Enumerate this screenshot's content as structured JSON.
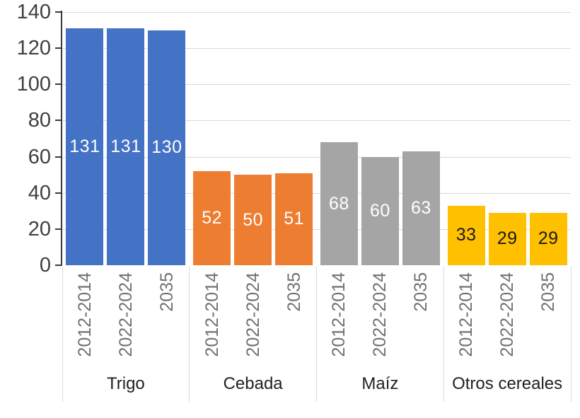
{
  "chart_data": {
    "type": "bar",
    "title": "",
    "xlabel": "",
    "ylabel": "",
    "ylim": [
      0,
      140
    ],
    "y_ticks": [
      0,
      20,
      40,
      60,
      80,
      100,
      120,
      140
    ],
    "grid": true,
    "legend_position": "none",
    "categories": [
      "2012-2014",
      "2022-2024",
      "2035"
    ],
    "groups": [
      {
        "name": "Trigo",
        "color": "#4472C4",
        "value_label_color": "#FFFFFF",
        "values": [
          131,
          131,
          130
        ]
      },
      {
        "name": "Cebada",
        "color": "#ED7D31",
        "value_label_color": "#FFFFFF",
        "values": [
          52,
          50,
          51
        ]
      },
      {
        "name": "Maíz",
        "color": "#A5A5A5",
        "value_label_color": "#FFFFFF",
        "values": [
          68,
          60,
          63
        ]
      },
      {
        "name": "Otros cereales",
        "color": "#FFC000",
        "value_label_color": "#1A1A1A",
        "values": [
          33,
          29,
          29
        ]
      }
    ]
  },
  "colors": {
    "background": "#FFFFFF",
    "gridline": "#D9D9D9",
    "axis": "#3A3A3A",
    "y_tick_label": "#404040",
    "category_label": "#717171",
    "group_label": "#212121",
    "divider": "#D9D9D9"
  }
}
